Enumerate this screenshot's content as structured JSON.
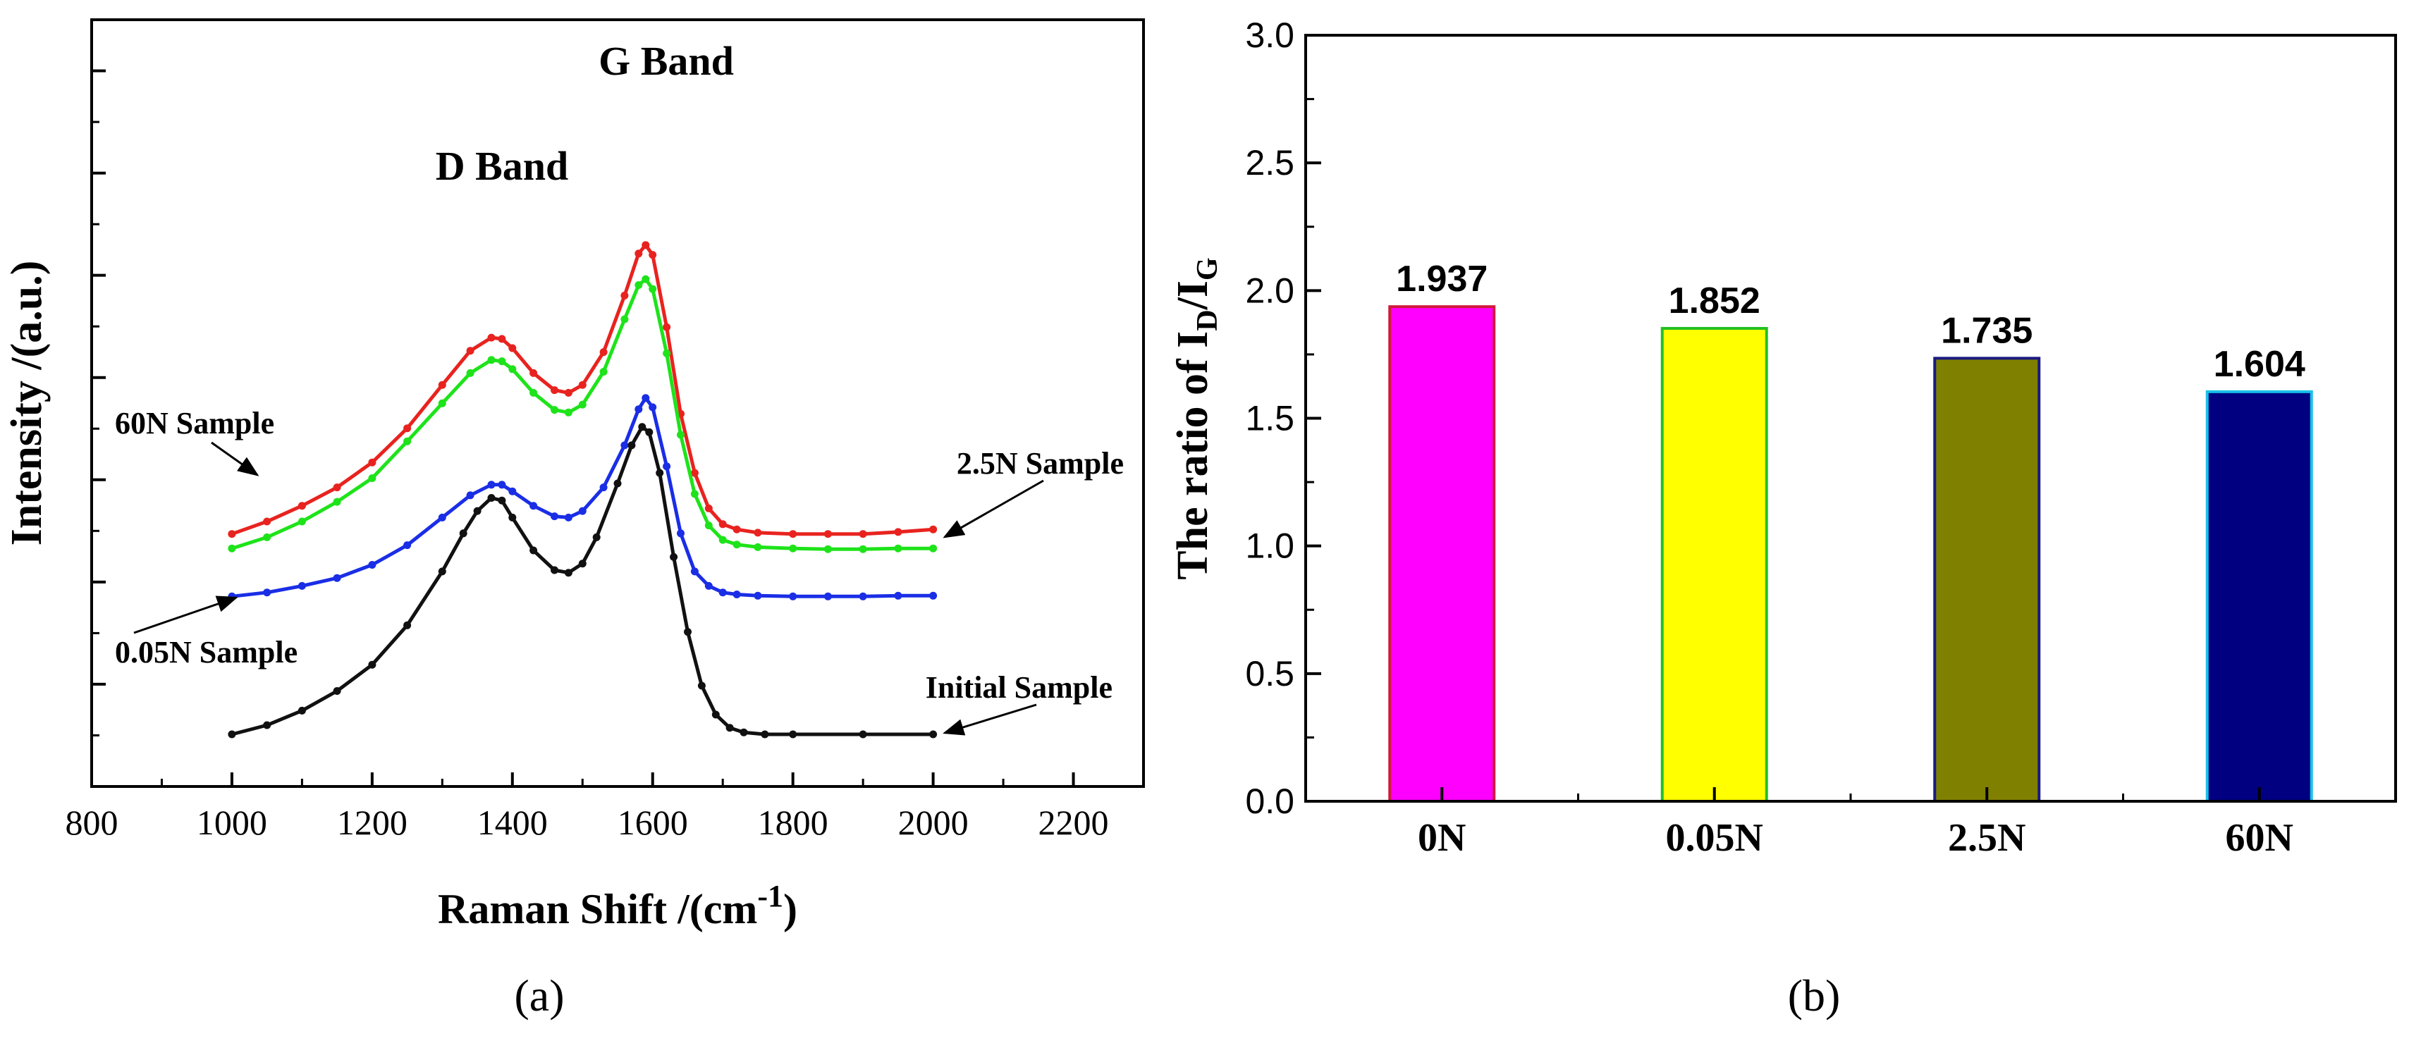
{
  "chart_data": [
    {
      "type": "line",
      "panel_label": "(a)",
      "title": "",
      "xlabel": "Raman Shift /(cm",
      "xlabel_sup": "-1",
      "xlabel_close": ")",
      "ylabel": "Intensity /(a.u.)",
      "xlim": [
        800,
        2300
      ],
      "x_ticks": [
        800,
        1000,
        1200,
        1400,
        1600,
        1800,
        2000,
        2200
      ],
      "y_tick_count": 15,
      "ylim": [
        0,
        100
      ],
      "y_ticks_labeled": false,
      "grid": false,
      "legend": "none",
      "annotations": {
        "g_band": "G Band",
        "d_band": "D Band",
        "s60": "60N Sample",
        "s25": "2.5N Sample",
        "s005": "0.05N Sample",
        "sinit": "Initial Sample"
      },
      "series": [
        {
          "name": "60N Sample",
          "color": "#e8231f",
          "x": [
            1000,
            1050,
            1100,
            1150,
            1200,
            1250,
            1300,
            1340,
            1370,
            1385,
            1400,
            1430,
            1460,
            1480,
            1500,
            1530,
            1560,
            1580,
            1590,
            1600,
            1620,
            1640,
            1660,
            1680,
            1700,
            1720,
            1750,
            1800,
            1850,
            1900,
            1950,
            2000
          ],
          "y": [
            30.5,
            32.4,
            34.8,
            37.6,
            41.4,
            46.6,
            53.2,
            58.4,
            60.4,
            60.2,
            58.8,
            55.0,
            52.4,
            52.0,
            53.2,
            58.2,
            66.8,
            73.2,
            74.5,
            73.0,
            62.0,
            48.8,
            39.8,
            34.4,
            32.0,
            31.2,
            30.7,
            30.5,
            30.5,
            30.5,
            30.8,
            31.2
          ]
        },
        {
          "name": "2.5N Sample",
          "color": "#1ee31a",
          "x": [
            1000,
            1050,
            1100,
            1150,
            1200,
            1250,
            1300,
            1340,
            1370,
            1385,
            1400,
            1430,
            1460,
            1480,
            1500,
            1530,
            1560,
            1580,
            1590,
            1600,
            1620,
            1640,
            1660,
            1680,
            1700,
            1720,
            1750,
            1800,
            1850,
            1900,
            1950,
            2000
          ],
          "y": [
            28.3,
            30.0,
            32.4,
            35.4,
            39.0,
            44.6,
            50.4,
            55.0,
            57.0,
            56.8,
            55.6,
            52.0,
            49.4,
            49.0,
            50.2,
            55.2,
            63.2,
            68.4,
            69.3,
            67.8,
            58.0,
            45.6,
            36.6,
            31.8,
            29.6,
            28.9,
            28.5,
            28.3,
            28.2,
            28.2,
            28.3,
            28.3
          ]
        },
        {
          "name": "0.05N Sample",
          "color": "#1a2ee6",
          "x": [
            1000,
            1050,
            1100,
            1150,
            1200,
            1250,
            1300,
            1340,
            1370,
            1385,
            1400,
            1430,
            1460,
            1480,
            1500,
            1530,
            1560,
            1580,
            1590,
            1600,
            1620,
            1640,
            1660,
            1680,
            1700,
            1720,
            1750,
            1800,
            1850,
            1900,
            1950,
            2000
          ],
          "y": [
            21.0,
            21.6,
            22.6,
            23.8,
            25.8,
            28.8,
            33.0,
            36.4,
            38.0,
            38.0,
            37.0,
            34.8,
            33.2,
            33.0,
            34.0,
            37.6,
            44.0,
            49.5,
            51.2,
            49.8,
            40.8,
            30.6,
            24.8,
            22.6,
            21.6,
            21.3,
            21.1,
            21.0,
            21.0,
            21.0,
            21.1,
            21.1
          ]
        },
        {
          "name": "Initial Sample",
          "color": "#111111",
          "x": [
            1000,
            1050,
            1100,
            1150,
            1200,
            1250,
            1300,
            1330,
            1350,
            1370,
            1385,
            1400,
            1430,
            1460,
            1480,
            1500,
            1520,
            1550,
            1570,
            1585,
            1595,
            1610,
            1630,
            1650,
            1670,
            1690,
            1710,
            1730,
            1760,
            1800,
            1900,
            2000
          ],
          "y": [
            0.0,
            1.4,
            3.6,
            6.6,
            10.6,
            16.6,
            24.8,
            30.6,
            34.0,
            36.0,
            35.6,
            33.0,
            28.0,
            25.0,
            24.6,
            26.0,
            30.0,
            38.2,
            44.0,
            46.8,
            46.0,
            39.8,
            27.0,
            15.6,
            7.4,
            3.0,
            1.0,
            0.3,
            0.0,
            0.0,
            0.0,
            0.0
          ]
        }
      ]
    },
    {
      "type": "bar",
      "panel_label": "(b)",
      "title": "",
      "xlabel": "",
      "ylabel_prefix": "The ratio of I",
      "ylabel_sub1": "D",
      "ylabel_mid": "/I",
      "ylabel_sub2": "G",
      "ylim": [
        0,
        3.0
      ],
      "y_ticks": [
        "0.0",
        "0.5",
        "1.0",
        "1.5",
        "2.0",
        "2.5",
        "3.0"
      ],
      "categories": [
        "0N",
        "0.05N",
        "2.5N",
        "60N"
      ],
      "values": [
        1.937,
        1.852,
        1.735,
        1.604
      ],
      "value_labels": [
        "1.937",
        "1.852",
        "1.735",
        "1.604"
      ],
      "bar_colors": [
        "#ff00ff",
        "#ffff00",
        "#808000",
        "#000080"
      ],
      "bar_edge_colors": [
        "#d01a3a",
        "#22c020",
        "#1a1a80",
        "#18c0e8"
      ],
      "grid": false,
      "legend": "none"
    }
  ]
}
